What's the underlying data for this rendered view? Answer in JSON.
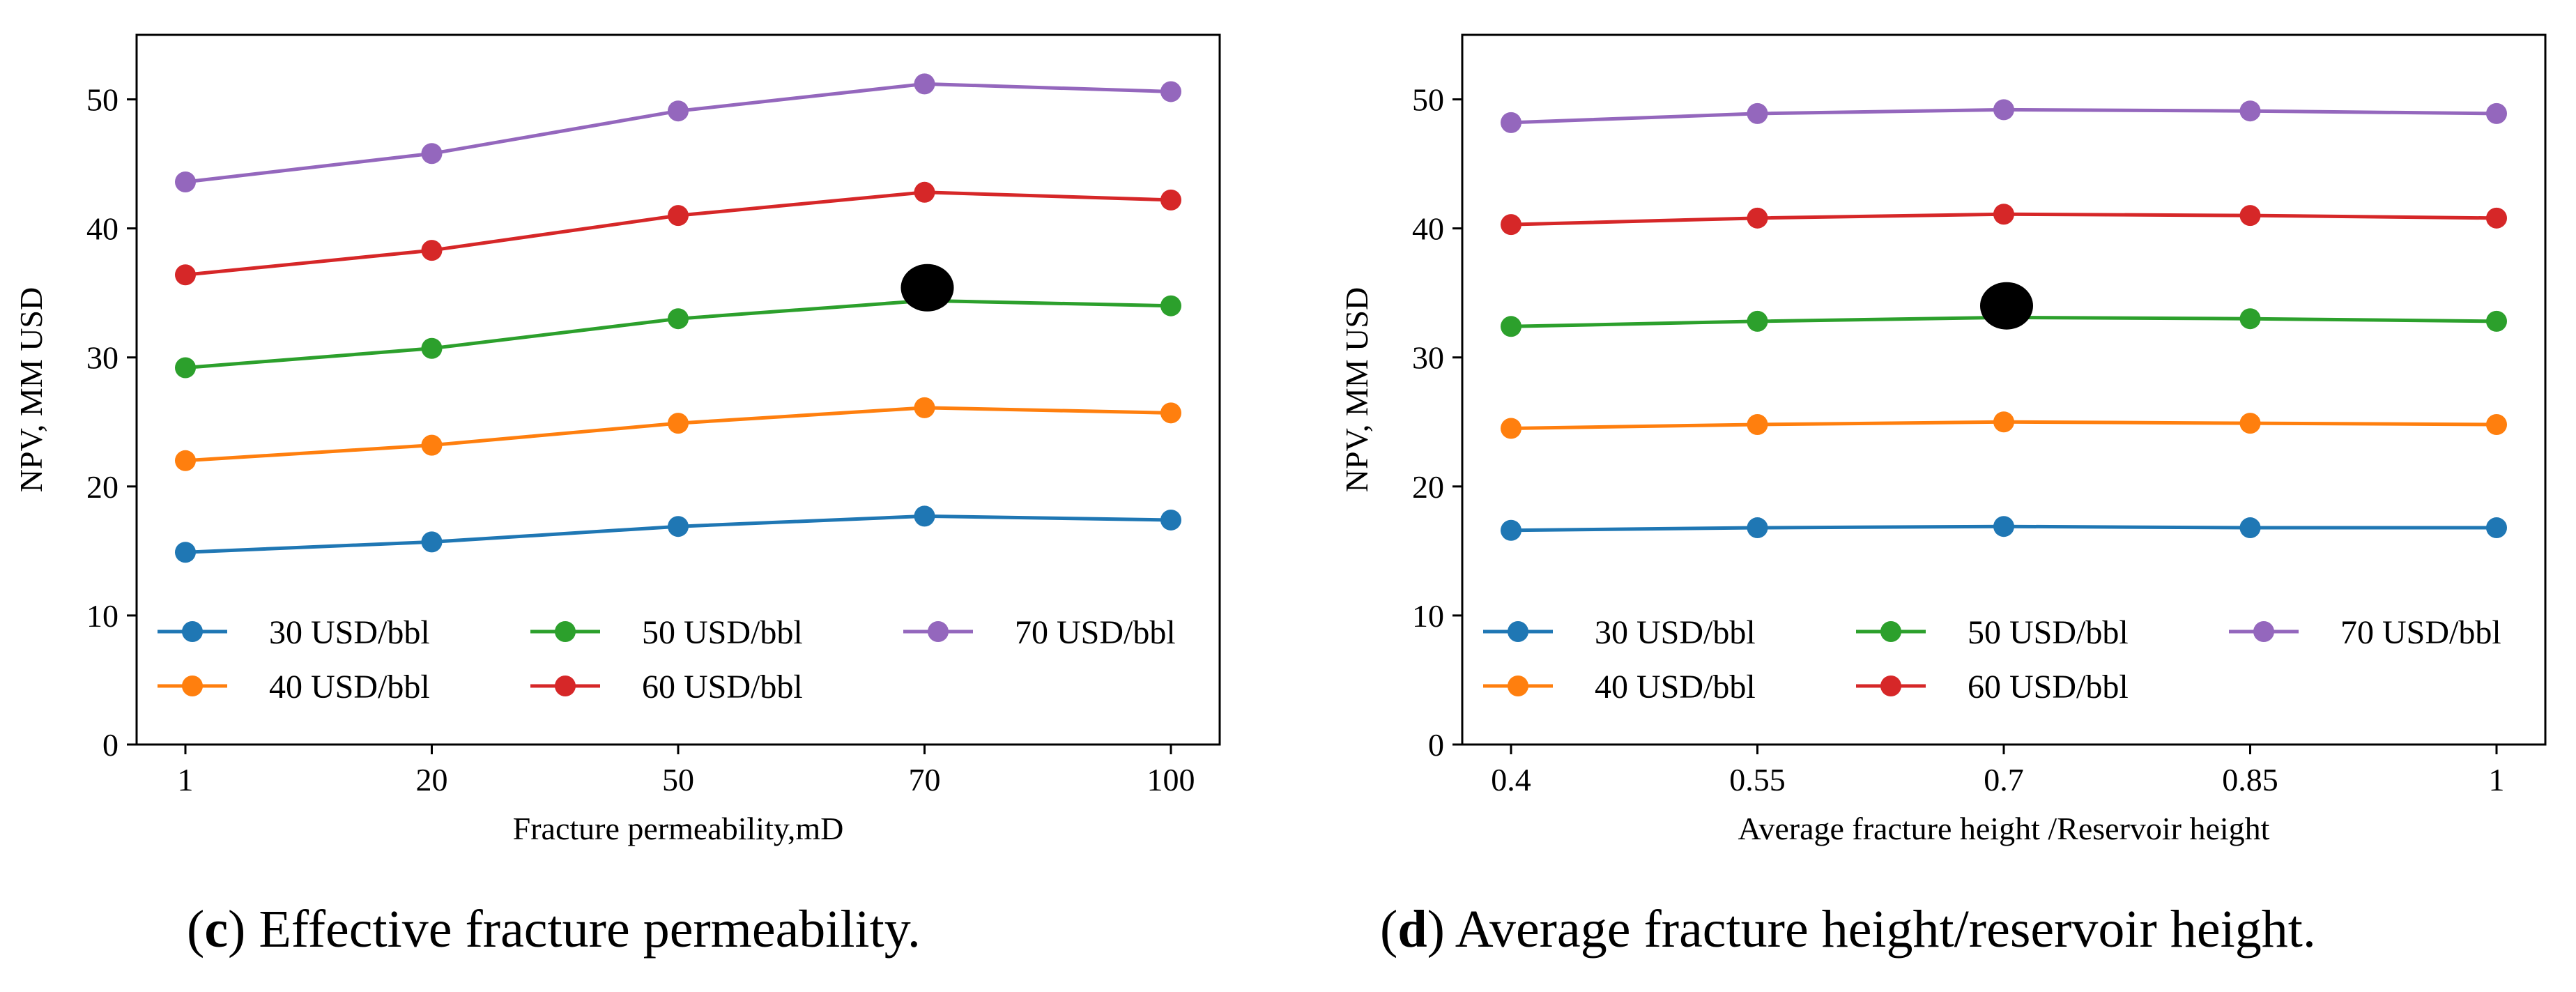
{
  "colors": {
    "s30": "#1f77b4",
    "s40": "#ff7f0e",
    "s50": "#2ca02c",
    "s60": "#d62728",
    "s70": "#9467bd"
  },
  "captions": {
    "c_letter": "c",
    "c_text": ") Effective fracture permeability.",
    "d_letter": "d",
    "d_text": ") Average fracture height/reservoir height."
  },
  "chart_data": [
    {
      "type": "line",
      "xlabel": "Fracture permeability,mD",
      "ylabel": "NPV, MM USD",
      "categories": [
        "1",
        "20",
        "50",
        "70",
        "100"
      ],
      "ylim": [
        0,
        55
      ],
      "yticks": [
        "0",
        "10",
        "20",
        "30",
        "40",
        "50"
      ],
      "series": [
        {
          "name": "30 USD/bbl",
          "color": "#1f77b4",
          "values": [
            14.9,
            15.7,
            16.9,
            17.7,
            17.4
          ]
        },
        {
          "name": "40 USD/bbl",
          "color": "#ff7f0e",
          "values": [
            22.0,
            23.2,
            24.9,
            26.1,
            25.7
          ]
        },
        {
          "name": "50 USD/bbl",
          "color": "#2ca02c",
          "values": [
            29.2,
            30.7,
            33.0,
            34.4,
            34.0
          ]
        },
        {
          "name": "60 USD/bbl",
          "color": "#d62728",
          "values": [
            36.4,
            38.3,
            41.0,
            42.8,
            42.2
          ]
        },
        {
          "name": "70 USD/bbl",
          "color": "#9467bd",
          "values": [
            43.6,
            45.8,
            49.1,
            51.2,
            50.6
          ]
        }
      ],
      "annotation_marker": {
        "category": "70",
        "value": 35.4
      }
    },
    {
      "type": "line",
      "xlabel": "Average fracture height /Reservoir height",
      "ylabel": "NPV, MM USD",
      "categories": [
        "0.4",
        "0.55",
        "0.7",
        "0.85",
        "1"
      ],
      "ylim": [
        0,
        55
      ],
      "yticks": [
        "0",
        "10",
        "20",
        "30",
        "40",
        "50"
      ],
      "series": [
        {
          "name": "30 USD/bbl",
          "color": "#1f77b4",
          "values": [
            16.6,
            16.8,
            16.9,
            16.8,
            16.8
          ]
        },
        {
          "name": "40 USD/bbl",
          "color": "#ff7f0e",
          "values": [
            24.5,
            24.8,
            25.0,
            24.9,
            24.8
          ]
        },
        {
          "name": "50 USD/bbl",
          "color": "#2ca02c",
          "values": [
            32.4,
            32.8,
            33.1,
            33.0,
            32.8
          ]
        },
        {
          "name": "60 USD/bbl",
          "color": "#d62728",
          "values": [
            40.3,
            40.8,
            41.1,
            41.0,
            40.8
          ]
        },
        {
          "name": "70 USD/bbl",
          "color": "#9467bd",
          "values": [
            48.2,
            48.9,
            49.2,
            49.1,
            48.9
          ]
        }
      ],
      "annotation_marker": {
        "category": "0.7",
        "value": 34.0
      }
    }
  ]
}
